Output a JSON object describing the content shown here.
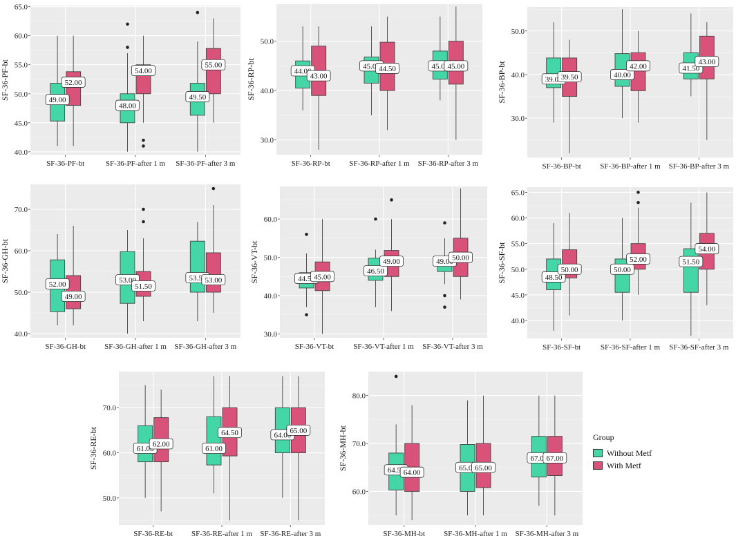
{
  "colors": {
    "without": "#44d6a6",
    "with": "#d8527a",
    "panel_bg": "#ebebeb",
    "grid": "#ffffff"
  },
  "legend": {
    "title": "Group",
    "items": [
      {
        "label": "Without Metf",
        "color": "#44d6a6"
      },
      {
        "label": "With Metf",
        "color": "#d8527a"
      }
    ]
  },
  "chart_data": [
    {
      "type": "box",
      "ylabel": "SF-36-PF-bt",
      "ylim": [
        39.5,
        65.2
      ],
      "yticks": [
        40,
        45,
        50,
        55,
        60,
        65
      ],
      "yticklabels": [
        "40.0",
        "45.0",
        "50.0",
        "55.0",
        "60.0",
        "65.0"
      ],
      "categories": [
        "SF-36-PF-bt",
        "SF-36-PF-after 1 m",
        "SF-36-PF-after 3 m"
      ],
      "series": [
        {
          "name": "Without Metf",
          "boxes": [
            {
              "min": 41,
              "q1": 45.3,
              "median": 49,
              "q3": 51.8,
              "max": 60,
              "outliers": [],
              "label": "49.00"
            },
            {
              "min": 40,
              "q1": 45,
              "median": 48,
              "q3": 50,
              "max": 57,
              "outliers": [
                62,
                58
              ],
              "label": "48.00"
            },
            {
              "min": 40,
              "q1": 46.3,
              "median": 49.5,
              "q3": 51.8,
              "max": 59,
              "outliers": [
                64
              ],
              "label": "49.50"
            }
          ]
        },
        {
          "name": "With Metf",
          "boxes": [
            {
              "min": 41,
              "q1": 48,
              "median": 52,
              "q3": 53.8,
              "max": 60,
              "outliers": [],
              "label": "52.00"
            },
            {
              "min": 45,
              "q1": 50,
              "median": 54,
              "q3": 55,
              "max": 60,
              "outliers": [
                42,
                41
              ],
              "label": "54.00"
            },
            {
              "min": 45,
              "q1": 50,
              "median": 55,
              "q3": 57.8,
              "max": 63,
              "outliers": [],
              "label": "55.00"
            }
          ]
        }
      ]
    },
    {
      "type": "box",
      "ylabel": "SF-36-RP-bt",
      "ylim": [
        27,
        57.5
      ],
      "yticks": [
        30,
        40,
        50
      ],
      "yticklabels": [
        "30.0",
        "40.0",
        "50.0"
      ],
      "categories": [
        "SF-36-RP-bt",
        "SF-36-RP-after 1 m",
        "SF-36-RP-after 3 m"
      ],
      "series": [
        {
          "name": "Without Metf",
          "boxes": [
            {
              "min": 36,
              "q1": 40.5,
              "median": 44,
              "q3": 46,
              "max": 53,
              "outliers": [],
              "label": "44.00"
            },
            {
              "min": 35,
              "q1": 41.5,
              "median": 45,
              "q3": 46.8,
              "max": 53,
              "outliers": [],
              "label": "45.00"
            },
            {
              "min": 38,
              "q1": 42.3,
              "median": 45,
              "q3": 48,
              "max": 55,
              "outliers": [],
              "label": "45.00"
            }
          ]
        },
        {
          "name": "With Metf",
          "boxes": [
            {
              "min": 28,
              "q1": 39,
              "median": 43,
              "q3": 49,
              "max": 53,
              "outliers": [],
              "label": "43.00"
            },
            {
              "min": 32,
              "q1": 40,
              "median": 44.5,
              "q3": 49.8,
              "max": 55,
              "outliers": [],
              "label": "44.50"
            },
            {
              "min": 30,
              "q1": 41.3,
              "median": 45,
              "q3": 50,
              "max": 57,
              "outliers": [],
              "label": "45.00"
            }
          ]
        }
      ]
    },
    {
      "type": "box",
      "ylabel": "SF-36-BP-bt",
      "ylim": [
        21,
        55.5
      ],
      "yticks": [
        30,
        40,
        50
      ],
      "yticklabels": [
        "30.0",
        "40.0",
        "50.0"
      ],
      "categories": [
        "SF-36-BP-bt",
        "SF-36-BP-after 1 m",
        "SF-36-BP-after 3 m"
      ],
      "series": [
        {
          "name": "Without Metf",
          "boxes": [
            {
              "min": 29,
              "q1": 37,
              "median": 39,
              "q3": 43.8,
              "max": 52,
              "outliers": [],
              "label": "39.00"
            },
            {
              "min": 30,
              "q1": 37.3,
              "median": 40,
              "q3": 44.8,
              "max": 55,
              "outliers": [],
              "label": "40.00"
            },
            {
              "min": 35,
              "q1": 39,
              "median": 41.5,
              "q3": 45,
              "max": 54,
              "outliers": [],
              "label": "41.50"
            }
          ]
        },
        {
          "name": "With Metf",
          "boxes": [
            {
              "min": 22,
              "q1": 35,
              "median": 39.5,
              "q3": 43.8,
              "max": 48,
              "outliers": [],
              "label": "39.50"
            },
            {
              "min": 29,
              "q1": 36.3,
              "median": 42,
              "q3": 45,
              "max": 50,
              "outliers": [],
              "label": "42.00"
            },
            {
              "min": 25,
              "q1": 39,
              "median": 43,
              "q3": 48.8,
              "max": 52,
              "outliers": [],
              "label": "43.00"
            }
          ]
        }
      ]
    },
    {
      "type": "box",
      "ylabel": "SF-36-GH-bt",
      "ylim": [
        39,
        76
      ],
      "yticks": [
        40,
        50,
        60,
        70
      ],
      "yticklabels": [
        "40.0",
        "50.0",
        "60.0",
        "70.0"
      ],
      "categories": [
        "SF-36-GH-bt",
        "SF-36-GH-after 1 m",
        "SF-36-GH-after 3 m"
      ],
      "series": [
        {
          "name": "Without Metf",
          "boxes": [
            {
              "min": 42,
              "q1": 45.3,
              "median": 52,
              "q3": 57.8,
              "max": 64,
              "outliers": [],
              "label": "52.00"
            },
            {
              "min": 40,
              "q1": 47.3,
              "median": 53,
              "q3": 59.8,
              "max": 65,
              "outliers": [],
              "label": "53.00"
            },
            {
              "min": 43,
              "q1": 50,
              "median": 53.5,
              "q3": 62.3,
              "max": 67,
              "outliers": [],
              "label": "53.50"
            }
          ]
        },
        {
          "name": "With Metf",
          "boxes": [
            {
              "min": 42,
              "q1": 46,
              "median": 49,
              "q3": 54,
              "max": 66,
              "outliers": [],
              "label": "49.00"
            },
            {
              "min": 43,
              "q1": 49,
              "median": 51.5,
              "q3": 55,
              "max": 63,
              "outliers": [
                70,
                67
              ],
              "label": "51.50"
            },
            {
              "min": 45,
              "q1": 50,
              "median": 53,
              "q3": 59.5,
              "max": 71,
              "outliers": [
                75
              ],
              "label": "53.00"
            }
          ]
        }
      ]
    },
    {
      "type": "box",
      "ylabel": "SF-36-VT-bt",
      "ylim": [
        29,
        68.5
      ],
      "yticks": [
        30,
        40,
        50,
        60
      ],
      "yticklabels": [
        "30.0",
        "40.0",
        "50.0",
        "60.0"
      ],
      "categories": [
        "SF-36-VT-bt",
        "SF-36-VT-after 1 m",
        "SF-36-VT-after 3 m"
      ],
      "series": [
        {
          "name": "Without Metf",
          "boxes": [
            {
              "min": 37,
              "q1": 42,
              "median": 44.5,
              "q3": 46,
              "max": 51,
              "outliers": [
                56,
                35
              ],
              "label": "44.50"
            },
            {
              "min": 37,
              "q1": 44,
              "median": 46.5,
              "q3": 49.8,
              "max": 52,
              "outliers": [
                60
              ],
              "label": "46.50"
            },
            {
              "min": 43,
              "q1": 46.3,
              "median": 49,
              "q3": 50,
              "max": 55,
              "outliers": [
                59,
                40,
                37
              ],
              "label": "49.00"
            }
          ]
        },
        {
          "name": "With Metf",
          "boxes": [
            {
              "min": 30,
              "q1": 41.3,
              "median": 45,
              "q3": 48.8,
              "max": 60,
              "outliers": [],
              "label": "45.00"
            },
            {
              "min": 36,
              "q1": 45,
              "median": 49,
              "q3": 51.8,
              "max": 60,
              "outliers": [
                65
              ],
              "label": "49.00"
            },
            {
              "min": 39,
              "q1": 45,
              "median": 50,
              "q3": 55,
              "max": 68,
              "outliers": [],
              "label": "50.00"
            }
          ]
        }
      ]
    },
    {
      "type": "box",
      "ylabel": "SF-36-SF-bt",
      "ylim": [
        36.5,
        66
      ],
      "yticks": [
        40,
        45,
        50,
        55,
        60,
        65
      ],
      "yticklabels": [
        "40.0",
        "45.0",
        "50.0",
        "55.0",
        "60.0",
        "65.0"
      ],
      "categories": [
        "SF-36-SF-bt",
        "SF-36-SF-after 1 m",
        "SF-36-SF-after 3 m"
      ],
      "series": [
        {
          "name": "Without Metf",
          "boxes": [
            {
              "min": 38,
              "q1": 46,
              "median": 48.5,
              "q3": 52,
              "max": 59,
              "outliers": [],
              "label": "48.50"
            },
            {
              "min": 40,
              "q1": 45.5,
              "median": 50,
              "q3": 52,
              "max": 60,
              "outliers": [],
              "label": "50.00"
            },
            {
              "min": 37,
              "q1": 45.5,
              "median": 51.5,
              "q3": 54,
              "max": 63,
              "outliers": [],
              "label": "51.50"
            }
          ]
        },
        {
          "name": "With Metf",
          "boxes": [
            {
              "min": 41,
              "q1": 48.3,
              "median": 50,
              "q3": 53.8,
              "max": 61,
              "outliers": [],
              "label": "50.00"
            },
            {
              "min": 45,
              "q1": 50,
              "median": 52,
              "q3": 55,
              "max": 62,
              "outliers": [
                65,
                63
              ],
              "label": "52.00"
            },
            {
              "min": 43,
              "q1": 50,
              "median": 54,
              "q3": 57,
              "max": 65,
              "outliers": [],
              "label": "54.00"
            }
          ]
        }
      ]
    },
    {
      "type": "box",
      "ylabel": "SF-36-RE-bt",
      "ylim": [
        44,
        78
      ],
      "yticks": [
        50,
        60,
        70
      ],
      "yticklabels": [
        "50.0",
        "60.0",
        "70.0"
      ],
      "categories": [
        "SF-36-RE-bt",
        "SF-36-RE-after 1 m",
        "SF-36-RE-after 3 m"
      ],
      "series": [
        {
          "name": "Without Metf",
          "boxes": [
            {
              "min": 50,
              "q1": 58,
              "median": 61,
              "q3": 66,
              "max": 75,
              "outliers": [],
              "label": "61.00"
            },
            {
              "min": 51,
              "q1": 57.3,
              "median": 61,
              "q3": 68,
              "max": 77,
              "outliers": [],
              "label": "61.00"
            },
            {
              "min": 50,
              "q1": 60,
              "median": 64,
              "q3": 70,
              "max": 77,
              "outliers": [],
              "label": "64.00"
            }
          ]
        },
        {
          "name": "With Metf",
          "boxes": [
            {
              "min": 47,
              "q1": 58,
              "median": 62,
              "q3": 67.8,
              "max": 74,
              "outliers": [],
              "label": "62.00"
            },
            {
              "min": 45,
              "q1": 59.3,
              "median": 64.5,
              "q3": 70,
              "max": 77,
              "outliers": [],
              "label": "64.50"
            },
            {
              "min": 45,
              "q1": 60,
              "median": 65,
              "q3": 70,
              "max": 77,
              "outliers": [],
              "label": "65.00"
            }
          ]
        }
      ]
    },
    {
      "type": "box",
      "ylabel": "SF-36-MH-bt",
      "ylim": [
        53,
        85
      ],
      "yticks": [
        60,
        70,
        80
      ],
      "yticklabels": [
        "60.0",
        "70.0",
        "80.0"
      ],
      "categories": [
        "SF-36-MH-bt",
        "SF-36-MH-after 1 m",
        "SF-36-MH-after 3 m"
      ],
      "series": [
        {
          "name": "Without Metf",
          "boxes": [
            {
              "min": 55,
              "q1": 60.3,
              "median": 64.5,
              "q3": 68,
              "max": 74,
              "outliers": [
                84
              ],
              "label": "64.50"
            },
            {
              "min": 55,
              "q1": 60,
              "median": 65,
              "q3": 69.8,
              "max": 79,
              "outliers": [],
              "label": "65.00"
            },
            {
              "min": 57,
              "q1": 63,
              "median": 67,
              "q3": 71.5,
              "max": 80,
              "outliers": [],
              "label": "67.00"
            }
          ]
        },
        {
          "name": "With Metf",
          "boxes": [
            {
              "min": 54,
              "q1": 60,
              "median": 64,
              "q3": 70,
              "max": 78,
              "outliers": [],
              "label": "64.00"
            },
            {
              "min": 55,
              "q1": 60.8,
              "median": 65,
              "q3": 70,
              "max": 80,
              "outliers": [],
              "label": "65.00"
            },
            {
              "min": 55,
              "q1": 63.3,
              "median": 67,
              "q3": 71.5,
              "max": 80,
              "outliers": [],
              "label": "67.00"
            }
          ]
        }
      ]
    }
  ]
}
